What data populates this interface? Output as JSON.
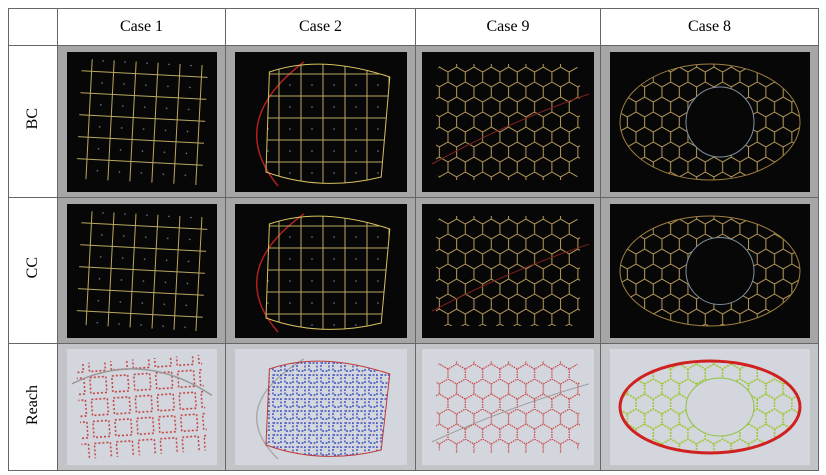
{
  "table": {
    "columns": [
      "Case 1",
      "Case 2",
      "Case 9",
      "Case 8"
    ],
    "rows": [
      "BC",
      "CC",
      "Reach"
    ]
  }
}
